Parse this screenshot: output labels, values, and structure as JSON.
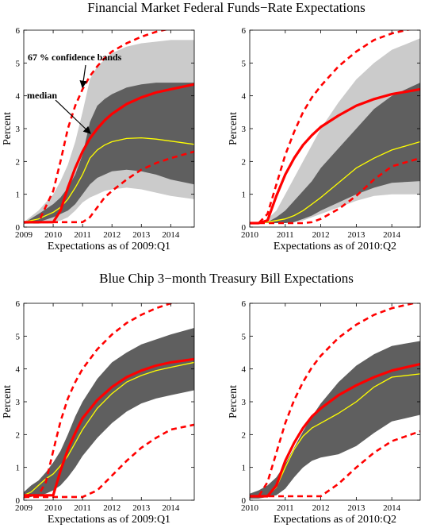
{
  "titles": {
    "top": "Financial Market Federal Funds−Rate Expectations",
    "bottom": "Blue Chip 3−month Treasury Bill Expectations"
  },
  "annotations": {
    "bands": "67 % confidence bands",
    "median": "median"
  },
  "colors": {
    "outer_band": "#cbcbcb",
    "inner_band": "#5f5f5f",
    "median": "#ff0000",
    "mean_line": "#ffff00",
    "dashed": "#ff0000"
  },
  "chart_data": [
    {
      "type": "area",
      "panel": "top-left",
      "xlabel": "Expectations as of 2009:Q1",
      "ylabel": "Percent",
      "xlim": [
        2009,
        2014.8
      ],
      "ylim": [
        0,
        6
      ],
      "xticks": [
        2009,
        2010,
        2011,
        2012,
        2013,
        2014
      ],
      "yticks": [
        0,
        1,
        2,
        3,
        4,
        5,
        6
      ],
      "x": [
        2009,
        2009.5,
        2010,
        2010.25,
        2010.5,
        2010.75,
        2011,
        2011.25,
        2011.5,
        2011.75,
        2012,
        2012.5,
        2013,
        2013.5,
        2014,
        2014.8
      ],
      "outer_upper": [
        0.15,
        0.5,
        1.0,
        1.4,
        1.9,
        2.6,
        3.5,
        4.5,
        4.9,
        5.1,
        5.3,
        5.5,
        5.6,
        5.65,
        5.7,
        5.7
      ],
      "outer_lower": [
        0.1,
        0.1,
        0.15,
        0.2,
        0.3,
        0.5,
        0.75,
        0.9,
        1.0,
        1.1,
        1.15,
        1.2,
        1.15,
        1.05,
        0.95,
        0.85
      ],
      "inner_upper": [
        0.12,
        0.4,
        0.7,
        0.9,
        1.2,
        1.6,
        2.2,
        3.2,
        3.7,
        3.9,
        4.05,
        4.25,
        4.35,
        4.4,
        4.4,
        4.4
      ],
      "inner_lower": [
        0.1,
        0.15,
        0.3,
        0.4,
        0.5,
        0.7,
        1.0,
        1.3,
        1.5,
        1.6,
        1.7,
        1.75,
        1.7,
        1.6,
        1.45,
        1.3
      ],
      "median": [
        0.15,
        0.15,
        0.15,
        0.5,
        1.2,
        1.8,
        2.3,
        2.7,
        3.0,
        3.25,
        3.45,
        3.75,
        3.95,
        4.1,
        4.2,
        4.35
      ],
      "mean": [
        0.15,
        0.25,
        0.45,
        0.6,
        0.85,
        1.2,
        1.6,
        2.1,
        2.35,
        2.5,
        2.6,
        2.7,
        2.72,
        2.68,
        2.62,
        2.52
      ],
      "dashed_upper": [
        0.15,
        0.15,
        1.1,
        2.0,
        3.0,
        3.7,
        4.2,
        4.6,
        4.9,
        5.15,
        5.35,
        5.6,
        5.8,
        5.95,
        6.05,
        6.2
      ],
      "dashed_lower": [
        0.15,
        0.15,
        0.15,
        0.15,
        0.15,
        0.15,
        0.15,
        0.3,
        0.6,
        0.9,
        1.1,
        1.45,
        1.75,
        1.95,
        2.1,
        2.3
      ]
    },
    {
      "type": "area",
      "panel": "top-right",
      "xlabel": "Expectations as of 2010:Q2",
      "ylabel": "Percent",
      "xlim": [
        2010,
        2014.8
      ],
      "ylim": [
        0,
        6
      ],
      "xticks": [
        2010,
        2011,
        2012,
        2013,
        2014
      ],
      "yticks": [
        0,
        1,
        2,
        3,
        4,
        5,
        6
      ],
      "x": [
        2010,
        2010.25,
        2010.5,
        2010.75,
        2011,
        2011.25,
        2011.5,
        2011.75,
        2012,
        2012.5,
        2013,
        2013.5,
        2014,
        2014.8
      ],
      "outer_upper": [
        0.12,
        0.12,
        0.25,
        0.5,
        1.0,
        1.5,
        2.0,
        2.5,
        3.0,
        3.8,
        4.5,
        5.0,
        5.4,
        5.75
      ],
      "outer_lower": [
        0.12,
        0.12,
        0.12,
        0.12,
        0.12,
        0.15,
        0.2,
        0.3,
        0.4,
        0.6,
        0.8,
        0.95,
        1.0,
        1.0
      ],
      "inner_upper": [
        0.12,
        0.12,
        0.15,
        0.3,
        0.5,
        0.8,
        1.1,
        1.4,
        1.8,
        2.4,
        3.0,
        3.6,
        4.0,
        4.4
      ],
      "inner_lower": [
        0.12,
        0.12,
        0.12,
        0.12,
        0.12,
        0.15,
        0.25,
        0.35,
        0.5,
        0.75,
        1.0,
        1.2,
        1.35,
        1.4
      ],
      "median": [
        0.12,
        0.12,
        0.2,
        0.95,
        1.6,
        2.1,
        2.5,
        2.8,
        3.05,
        3.4,
        3.7,
        3.9,
        4.05,
        4.2
      ],
      "mean": [
        0.12,
        0.12,
        0.15,
        0.2,
        0.25,
        0.35,
        0.5,
        0.7,
        0.9,
        1.35,
        1.8,
        2.1,
        2.35,
        2.6
      ],
      "dashed_upper": [
        0.12,
        0.12,
        0.4,
        1.3,
        2.2,
        2.9,
        3.5,
        3.95,
        4.3,
        4.9,
        5.35,
        5.7,
        5.9,
        6.1
      ],
      "dashed_lower": [
        0.12,
        0.12,
        0.12,
        0.12,
        0.12,
        0.12,
        0.12,
        0.15,
        0.25,
        0.55,
        0.95,
        1.45,
        1.85,
        2.1
      ]
    },
    {
      "type": "area",
      "panel": "bottom-left",
      "xlabel": "Expectations as of 2009:Q1",
      "ylabel": "Percent",
      "xlim": [
        2009,
        2014.8
      ],
      "ylim": [
        0,
        6
      ],
      "xticks": [
        2009,
        2010,
        2011,
        2012,
        2013,
        2014
      ],
      "yticks": [
        0,
        1,
        2,
        3,
        4,
        5,
        6
      ],
      "x": [
        2009,
        2009.25,
        2009.5,
        2009.75,
        2010,
        2010.25,
        2010.5,
        2010.75,
        2011,
        2011.5,
        2012,
        2012.5,
        2013,
        2013.5,
        2014,
        2014.8
      ],
      "inner_upper": [
        0.25,
        0.45,
        0.6,
        0.85,
        1.15,
        1.5,
        2.0,
        2.55,
        3.0,
        3.7,
        4.2,
        4.5,
        4.75,
        4.9,
        5.05,
        5.25
      ],
      "inner_lower": [
        0.05,
        0.1,
        0.15,
        0.2,
        0.3,
        0.45,
        0.7,
        1.0,
        1.35,
        1.9,
        2.35,
        2.7,
        2.95,
        3.1,
        3.2,
        3.35
      ],
      "median": [
        0.15,
        0.15,
        0.15,
        0.15,
        0.15,
        0.9,
        1.55,
        2.05,
        2.5,
        3.05,
        3.45,
        3.75,
        3.95,
        4.1,
        4.2,
        4.3
      ],
      "mean": [
        0.15,
        0.25,
        0.45,
        0.65,
        0.8,
        1.05,
        1.35,
        1.75,
        2.15,
        2.8,
        3.25,
        3.6,
        3.8,
        3.95,
        4.05,
        4.2
      ],
      "dashed_upper": [
        0.15,
        0.15,
        0.15,
        0.55,
        1.5,
        2.4,
        3.1,
        3.6,
        4.0,
        4.6,
        5.05,
        5.4,
        5.65,
        5.85,
        6.0,
        6.1
      ],
      "dashed_lower": [
        0.1,
        0.1,
        0.1,
        0.1,
        0.1,
        0.1,
        0.1,
        0.1,
        0.1,
        0.3,
        0.75,
        1.2,
        1.6,
        1.9,
        2.15,
        2.3
      ]
    },
    {
      "type": "area",
      "panel": "bottom-right",
      "xlabel": "Expectations as of 2010:Q2",
      "ylabel": "Percent",
      "xlim": [
        2010,
        2014.8
      ],
      "ylim": [
        0,
        6
      ],
      "xticks": [
        2010,
        2011,
        2012,
        2013,
        2014
      ],
      "yticks": [
        0,
        1,
        2,
        3,
        4,
        5,
        6
      ],
      "x": [
        2010,
        2010.25,
        2010.5,
        2010.75,
        2011,
        2011.25,
        2011.5,
        2011.75,
        2012,
        2012.5,
        2013,
        2013.5,
        2014,
        2014.8
      ],
      "inner_upper": [
        0.2,
        0.3,
        0.45,
        0.7,
        1.1,
        1.6,
        2.1,
        2.55,
        2.95,
        3.6,
        4.1,
        4.45,
        4.7,
        4.85
      ],
      "inner_lower": [
        0.05,
        0.05,
        0.1,
        0.15,
        0.35,
        0.7,
        1.0,
        1.2,
        1.3,
        1.4,
        1.65,
        2.05,
        2.4,
        2.6
      ],
      "median": [
        0.12,
        0.12,
        0.12,
        0.45,
        1.2,
        1.75,
        2.2,
        2.55,
        2.8,
        3.2,
        3.5,
        3.75,
        3.95,
        4.15
      ],
      "mean": [
        0.12,
        0.12,
        0.12,
        0.4,
        1.0,
        1.55,
        1.95,
        2.2,
        2.35,
        2.65,
        3.0,
        3.45,
        3.75,
        3.85
      ],
      "dashed_upper": [
        0.12,
        0.12,
        0.55,
        1.45,
        2.35,
        3.05,
        3.6,
        4.05,
        4.4,
        4.95,
        5.35,
        5.65,
        5.85,
        6.05
      ],
      "dashed_lower": [
        0.12,
        0.12,
        0.12,
        0.12,
        0.12,
        0.12,
        0.12,
        0.12,
        0.12,
        0.5,
        1.0,
        1.45,
        1.8,
        2.1
      ]
    }
  ]
}
